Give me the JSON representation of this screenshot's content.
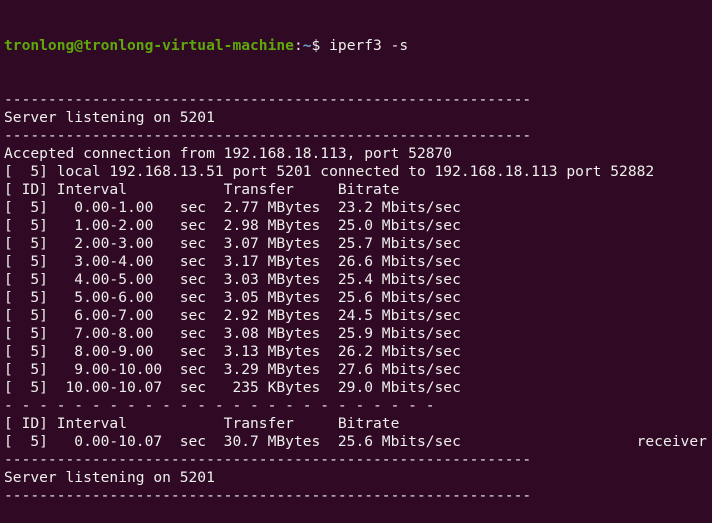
{
  "prompt": {
    "user_host": "tronlong@tronlong-virtual-machine",
    "colon": ":",
    "path": "~",
    "symbol": "$ ",
    "command": "iperf3 -s"
  },
  "colors": {
    "background": "#300a24",
    "text": "#eeeeec",
    "prompt_user": "#5fa80a",
    "prompt_path": "#729fcf"
  },
  "lines": [
    "------------------------------------------------------------",
    "Server listening on 5201",
    "------------------------------------------------------------",
    "Accepted connection from 192.168.18.113, port 52870",
    "[  5] local 192.168.13.51 port 5201 connected to 192.168.18.113 port 52882",
    "[ ID] Interval           Transfer     Bitrate",
    "[  5]   0.00-1.00   sec  2.77 MBytes  23.2 Mbits/sec",
    "[  5]   1.00-2.00   sec  2.98 MBytes  25.0 Mbits/sec",
    "[  5]   2.00-3.00   sec  3.07 MBytes  25.7 Mbits/sec",
    "[  5]   3.00-4.00   sec  3.17 MBytes  26.6 Mbits/sec",
    "[  5]   4.00-5.00   sec  3.03 MBytes  25.4 Mbits/sec",
    "[  5]   5.00-6.00   sec  3.05 MBytes  25.6 Mbits/sec",
    "[  5]   6.00-7.00   sec  2.92 MBytes  24.5 Mbits/sec",
    "[  5]   7.00-8.00   sec  3.08 MBytes  25.9 Mbits/sec",
    "[  5]   8.00-9.00   sec  3.13 MBytes  26.2 Mbits/sec",
    "[  5]   9.00-10.00  sec  3.29 MBytes  27.6 Mbits/sec",
    "[  5]  10.00-10.07  sec   235 KBytes  29.0 Mbits/sec",
    "- - - - - - - - - - - - - - - - - - - - - - - - -",
    "[ ID] Interval           Transfer     Bitrate",
    "[  5]   0.00-10.07  sec  30.7 MBytes  25.6 Mbits/sec                    receiver",
    "------------------------------------------------------------",
    "Server listening on 5201",
    "------------------------------------------------------------"
  ]
}
